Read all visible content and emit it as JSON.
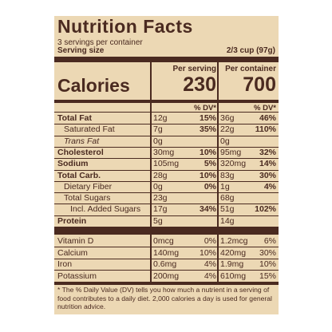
{
  "title": "Nutrition Facts",
  "servings": "3 servings per container",
  "serving_size": {
    "label": "Serving size",
    "value": "2/3 cup (97g)"
  },
  "calories": {
    "label": "Calories",
    "columns": [
      {
        "header": "Per serving",
        "value": "230",
        "dv_header": "% DV*"
      },
      {
        "header": "Per container",
        "value": "700",
        "dv_header": "% DV*"
      }
    ]
  },
  "nutrients": [
    {
      "name": "Total Fat",
      "bold": true,
      "indent": 0,
      "cells": [
        [
          "12g",
          "15%"
        ],
        [
          "36g",
          "46%"
        ]
      ]
    },
    {
      "name": "Saturated Fat",
      "indent": 1,
      "cells": [
        [
          "7g",
          "35%"
        ],
        [
          "22g",
          "110%"
        ]
      ]
    },
    {
      "name": "Trans Fat",
      "indent": 1,
      "italic": true,
      "cells": [
        [
          "0g",
          null
        ],
        [
          "0g",
          null
        ]
      ]
    },
    {
      "name": "Cholesterol",
      "bold": true,
      "indent": 0,
      "cells": [
        [
          "30mg",
          "10%"
        ],
        [
          "95mg",
          "32%"
        ]
      ]
    },
    {
      "name": "Sodium",
      "bold": true,
      "indent": 0,
      "cells": [
        [
          "105mg",
          "5%"
        ],
        [
          "320mg",
          "14%"
        ]
      ]
    },
    {
      "name": "Total Carb.",
      "bold": true,
      "indent": 0,
      "cells": [
        [
          "28g",
          "10%"
        ],
        [
          "83g",
          "30%"
        ]
      ]
    },
    {
      "name": "Dietary Fiber",
      "indent": 1,
      "cells": [
        [
          "0g",
          "0%"
        ],
        [
          "1g",
          "4%"
        ]
      ]
    },
    {
      "name": "Total Sugars",
      "indent": 1,
      "cells": [
        [
          "23g",
          null
        ],
        [
          "68g",
          null
        ]
      ]
    },
    {
      "name": "Incl. Added Sugars",
      "indent": 2,
      "cells": [
        [
          "17g",
          "34%"
        ],
        [
          "51g",
          "102%"
        ]
      ]
    },
    {
      "name": "Protein",
      "bold": true,
      "indent": 0,
      "cells": [
        [
          "5g",
          null
        ],
        [
          "14g",
          null
        ]
      ]
    }
  ],
  "vitamins": [
    {
      "name": "Vitamin D",
      "cells": [
        [
          "0mcg",
          "0%"
        ],
        [
          "1.2mcg",
          "6%"
        ]
      ]
    },
    {
      "name": "Calcium",
      "cells": [
        [
          "140mg",
          "10%"
        ],
        [
          "420mg",
          "30%"
        ]
      ]
    },
    {
      "name": "Iron",
      "cells": [
        [
          "0.6mg",
          "4%"
        ],
        [
          "1.9mg",
          "10%"
        ]
      ]
    },
    {
      "name": "Potassium",
      "cells": [
        [
          "200mg",
          "4%"
        ],
        [
          "610mg",
          "15%"
        ]
      ]
    }
  ],
  "footnote": "* The % Daily Value (DV) tells you how much a nutrient in a serving of food contributes to a daily diet. 2,000 calories a day is used for general nutrition advice."
}
